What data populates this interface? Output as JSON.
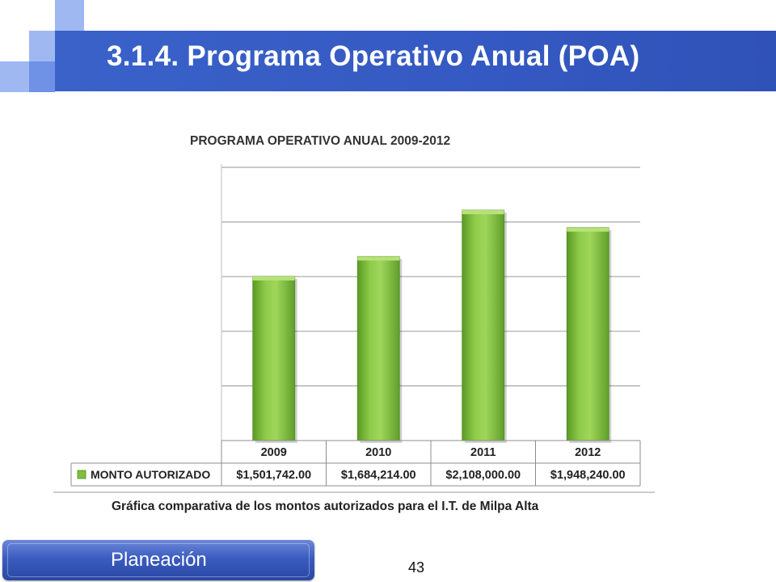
{
  "slide": {
    "title": "3.1.4. Programa Operativo Anual (POA)",
    "caption": "Gráfica comparativa de los montos autorizados para el I.T. de Milpa Alta",
    "section": "Planeación",
    "page_number": "43"
  },
  "colors": {
    "title_bar": "#3559c2",
    "deco_light": "#9fb8f2",
    "deco_mid": "#6f91e6",
    "bar_green": "#7fbf3a",
    "bar_green_dark": "#5a9a24"
  },
  "chart_data": {
    "type": "bar",
    "title": "PROGRAMA OPERATIVO ANUAL 2009-2012",
    "categories": [
      "2009",
      "2010",
      "2011",
      "2012"
    ],
    "series": [
      {
        "name": "MONTO AUTORIZADO",
        "values": [
          1501742.0,
          1684214.0,
          2108000.0,
          1948240.0
        ],
        "labels": [
          "$1,501,742.00",
          "$1,684,214.00",
          "$2,108,000.00",
          "$1,948,240.00"
        ]
      }
    ],
    "ylim": [
      0,
      2500000
    ],
    "grid": true,
    "legend": "data-table"
  }
}
